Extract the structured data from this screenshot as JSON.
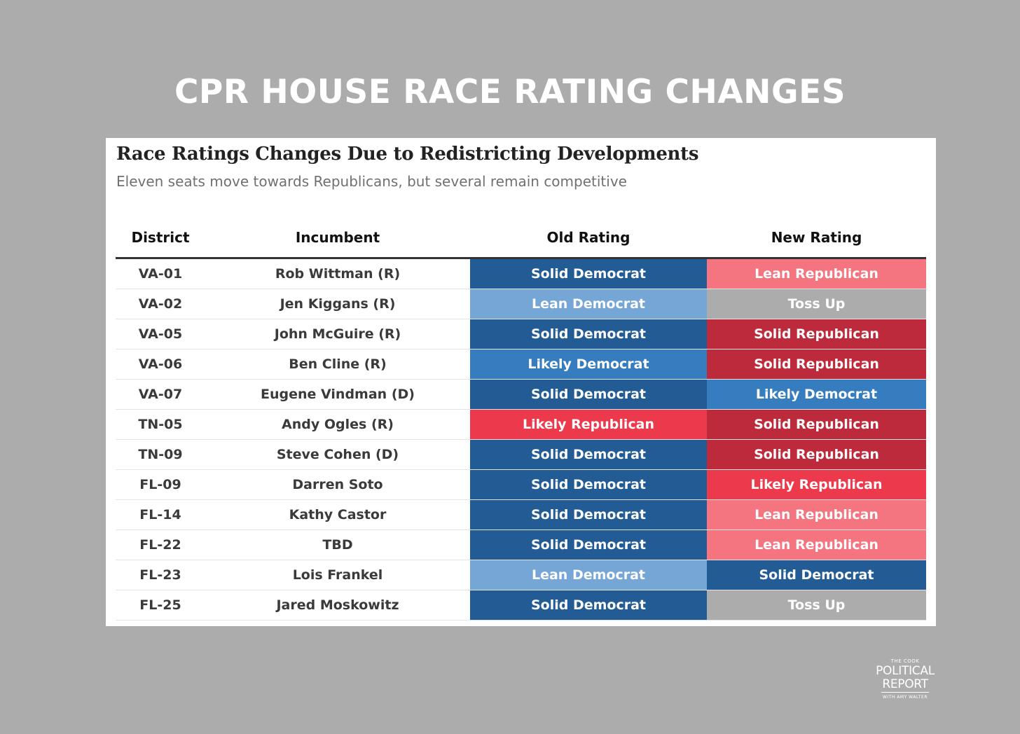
{
  "headline": "CPR HOUSE RACE RATING CHANGES",
  "chart_data": {
    "type": "table",
    "title": "Race Ratings Changes Due to Redistricting Developments",
    "subtitle": "Eleven seats move towards Republicans, but several remain competitive",
    "columns": [
      "District",
      "Incumbent",
      "Old Rating",
      "New Rating"
    ],
    "rows": [
      {
        "district": "VA-01",
        "incumbent": "Rob Wittman (R)",
        "old": "Solid Democrat",
        "new": "Lean Republican"
      },
      {
        "district": "VA-02",
        "incumbent": "Jen Kiggans (R)",
        "old": "Lean Democrat",
        "new": "Toss Up"
      },
      {
        "district": "VA-05",
        "incumbent": "John McGuire (R)",
        "old": "Solid Democrat",
        "new": "Solid Republican"
      },
      {
        "district": "VA-06",
        "incumbent": "Ben Cline (R)",
        "old": "Likely Democrat",
        "new": "Solid Republican"
      },
      {
        "district": "VA-07",
        "incumbent": "Eugene Vindman (D)",
        "old": "Solid Democrat",
        "new": "Likely Democrat"
      },
      {
        "district": "TN-05",
        "incumbent": "Andy Ogles (R)",
        "old": "Likely Republican",
        "new": "Solid Republican"
      },
      {
        "district": "TN-09",
        "incumbent": "Steve Cohen (D)",
        "old": "Solid Democrat",
        "new": "Solid Republican"
      },
      {
        "district": "FL-09",
        "incumbent": "Darren Soto",
        "old": "Solid Democrat",
        "new": "Likely Republican"
      },
      {
        "district": "FL-14",
        "incumbent": "Kathy Castor",
        "old": "Solid Democrat",
        "new": "Lean Republican"
      },
      {
        "district": "FL-22",
        "incumbent": "TBD",
        "old": "Solid Democrat",
        "new": "Lean Republican"
      },
      {
        "district": "FL-23",
        "incumbent": "Lois Frankel",
        "old": "Lean Democrat",
        "new": "Solid Democrat"
      },
      {
        "district": "FL-25",
        "incumbent": "Jared Moskowitz",
        "old": "Solid Democrat",
        "new": "Toss Up"
      }
    ],
    "rating_colors": {
      "Solid Democrat": "#235c94",
      "Likely Democrat": "#367dbf",
      "Lean Democrat": "#76a6d6",
      "Toss Up": "#acacac",
      "Lean Republican": "#f47580",
      "Likely Republican": "#ec3a4c",
      "Solid Republican": "#bc2a3b"
    }
  },
  "logo": {
    "line1": "THE COOK",
    "line2": "POLITICAL",
    "line3": "REPORT",
    "line4": "WITH AMY WALTER"
  }
}
